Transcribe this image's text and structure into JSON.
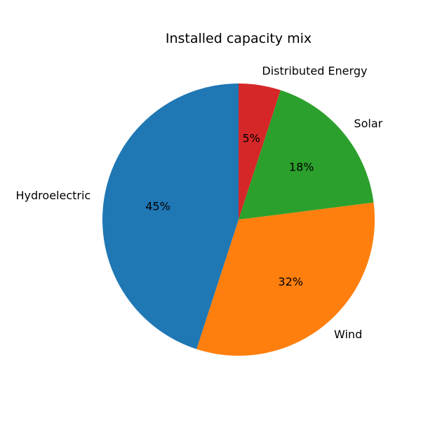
{
  "chart_data": {
    "type": "pie",
    "title": "Installed capacity mix",
    "categories": [
      "Distributed Energy",
      "Solar",
      "Wind",
      "Hydroelectric"
    ],
    "values": [
      5,
      18,
      32,
      45
    ],
    "value_labels": [
      "5%",
      "18%",
      "32%",
      "45%"
    ],
    "colors": [
      "#d62728",
      "#2ca02c",
      "#ff7f0e",
      "#1f77b4"
    ],
    "start_angle_deg": 90,
    "direction": "clockwise"
  }
}
